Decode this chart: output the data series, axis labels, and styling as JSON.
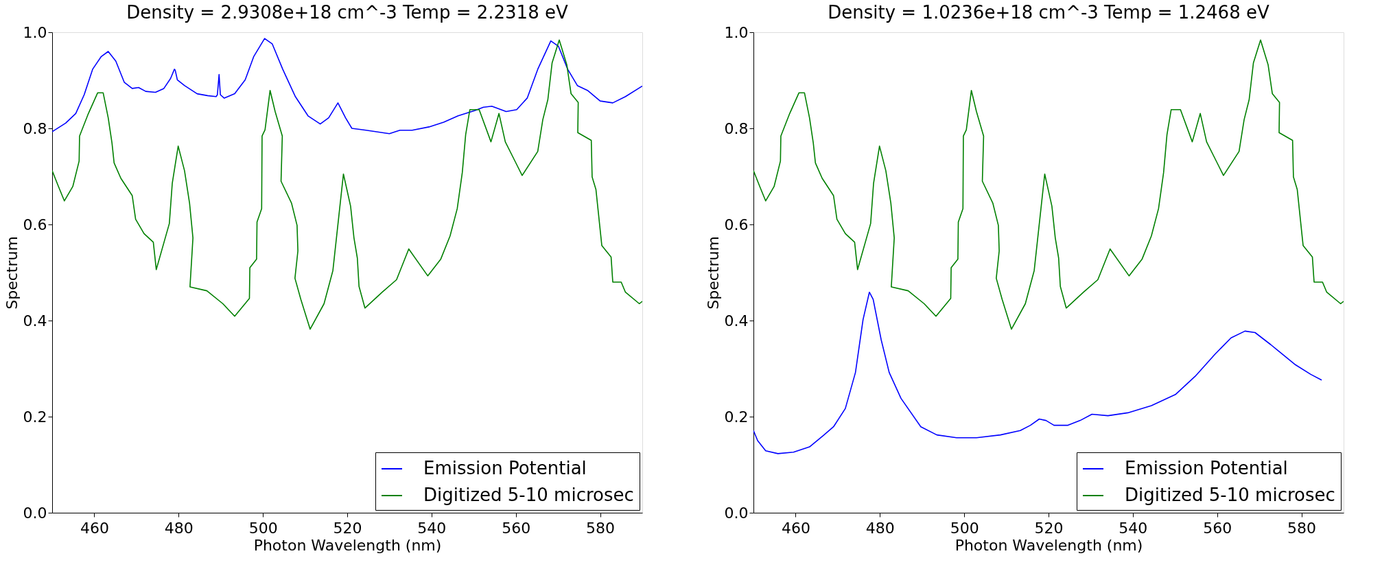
{
  "chart_data": [
    {
      "type": "line",
      "title": "Density = 2.9308e+18 cm^-3  Temp = 2.2318 eV",
      "xlabel": "Photon Wavelength (nm)",
      "ylabel": "Spectrum",
      "xlim": [
        450,
        590
      ],
      "xticks": [
        460,
        480,
        500,
        520,
        540,
        560,
        580
      ],
      "ylim": [
        0,
        1
      ],
      "yticks": [
        {
          "value": 0,
          "label": "0.0"
        },
        {
          "value": 0.2,
          "label": "0.2"
        },
        {
          "value": 0.4,
          "label": "0.4"
        },
        {
          "value": 0.6,
          "label": "0.6"
        },
        {
          "value": 0.8,
          "label": "0.8"
        },
        {
          "value": 1,
          "label": "1.0"
        }
      ],
      "legend": "bottom right",
      "line_style": "solid",
      "series": [
        {
          "name": "Emission Potential",
          "color": "#0000ff",
          "x": [
            450,
            453.2,
            455.6,
            457.6,
            459.6,
            461.6,
            463.3,
            465.1,
            467.1,
            469.0,
            470.5,
            472.2,
            474.5,
            476.5,
            478.1,
            479.0,
            479.2,
            479.7,
            481.4,
            484.4,
            486.9,
            488.9,
            489.2,
            489.6,
            489.9,
            490.8,
            493.3,
            495.8,
            497.8,
            500.4,
            502.2,
            504.7,
            507.7,
            510.7,
            513.6,
            515.6,
            517.8,
            519.6,
            521.1,
            524.5,
            530.0,
            532.5,
            535.4,
            539.4,
            542.9,
            546.3,
            550.3,
            552.3,
            554.3,
            557.7,
            560.2,
            562.7,
            565.2,
            568.3,
            570.1,
            572.3,
            574.6,
            577.0,
            580.0,
            583.0,
            586.0,
            590
          ],
          "values": [
            0.793,
            0.811,
            0.831,
            0.87,
            0.923,
            0.949,
            0.96,
            0.94,
            0.896,
            0.883,
            0.885,
            0.877,
            0.875,
            0.883,
            0.904,
            0.923,
            0.921,
            0.901,
            0.889,
            0.872,
            0.868,
            0.866,
            0.87,
            0.912,
            0.87,
            0.863,
            0.872,
            0.901,
            0.949,
            0.987,
            0.976,
            0.923,
            0.866,
            0.826,
            0.809,
            0.822,
            0.853,
            0.822,
            0.8,
            0.796,
            0.789,
            0.796,
            0.796,
            0.803,
            0.813,
            0.826,
            0.837,
            0.844,
            0.846,
            0.835,
            0.839,
            0.863,
            0.923,
            0.982,
            0.971,
            0.923,
            0.889,
            0.879,
            0.857,
            0.853,
            0.866,
            0.888
          ]
        },
        {
          "name": "Digitized 5-10 microsec",
          "color": "#008000",
          "x": [
            450,
            451.5,
            452.9,
            454.9,
            456.4,
            456.5,
            458.6,
            460.8,
            462.1,
            463.3,
            464.2,
            464.7,
            466.3,
            469.0,
            469.8,
            471.8,
            474.0,
            474.7,
            477.8,
            478.5,
            479.9,
            481.4,
            482.6,
            483.4,
            482.7,
            486.7,
            490.5,
            493.3,
            496.8,
            496.9,
            498.5,
            498.6,
            499.7,
            499.8,
            500.5,
            501.7,
            502.9,
            504.6,
            504.3,
            506.8,
            508.1,
            508.3,
            507.6,
            509.0,
            511.2,
            514.5,
            516.6,
            519.1,
            520.8,
            521.6,
            522.4,
            522.8,
            524.2,
            528.3,
            531.7,
            534.6,
            539.1,
            542.2,
            544.4,
            546.1,
            547.3,
            548.1,
            549.1,
            551.3,
            554.1,
            556.0,
            557.5,
            559.9,
            561.5,
            565.2,
            566.4,
            567.6,
            568.6,
            570.3,
            572.1,
            573.1,
            574.8,
            574.7,
            577.9,
            578.1,
            579.0,
            580.4,
            582.6,
            583.0,
            585.0,
            586.0,
            589.3,
            590
          ],
          "values": [
            0.712,
            0.679,
            0.649,
            0.679,
            0.732,
            0.784,
            0.831,
            0.874,
            0.874,
            0.822,
            0.769,
            0.728,
            0.696,
            0.66,
            0.611,
            0.581,
            0.563,
            0.506,
            0.602,
            0.686,
            0.763,
            0.712,
            0.644,
            0.572,
            0.47,
            0.462,
            0.435,
            0.409,
            0.446,
            0.51,
            0.528,
            0.605,
            0.633,
            0.784,
            0.797,
            0.879,
            0.835,
            0.784,
            0.69,
            0.644,
            0.598,
            0.545,
            0.488,
            0.444,
            0.382,
            0.435,
            0.504,
            0.705,
            0.638,
            0.572,
            0.53,
            0.471,
            0.426,
            0.459,
            0.485,
            0.549,
            0.493,
            0.528,
            0.576,
            0.633,
            0.708,
            0.787,
            0.839,
            0.839,
            0.772,
            0.831,
            0.772,
            0.73,
            0.702,
            0.752,
            0.818,
            0.86,
            0.936,
            0.984,
            0.932,
            0.872,
            0.854,
            0.791,
            0.775,
            0.699,
            0.673,
            0.556,
            0.532,
            0.48,
            0.48,
            0.459,
            0.435,
            0.44
          ]
        }
      ]
    },
    {
      "type": "line",
      "title": "Density = 1.0236e+18 cm^-3  Temp = 1.2468 eV",
      "xlabel": "Photon Wavelength (nm)",
      "ylabel": "Spectrum",
      "xlim": [
        450,
        590
      ],
      "xticks": [
        460,
        480,
        500,
        520,
        540,
        560,
        580
      ],
      "ylim": [
        0,
        1
      ],
      "yticks": [
        {
          "value": 0,
          "label": "0.0"
        },
        {
          "value": 0.2,
          "label": "0.2"
        },
        {
          "value": 0.4,
          "label": "0.4"
        },
        {
          "value": 0.6,
          "label": "0.6"
        },
        {
          "value": 0.8,
          "label": "0.8"
        },
        {
          "value": 1,
          "label": "1.0"
        }
      ],
      "legend": "bottom right",
      "line_style": "solid",
      "series": [
        {
          "name": "Emission Potential",
          "color": "#0000ff",
          "x": [
            450,
            451.0,
            452.9,
            455.8,
            459.5,
            463.3,
            466.6,
            469.0,
            471.8,
            474.2,
            476.0,
            477.5,
            478.4,
            480.3,
            482.2,
            485.0,
            489.7,
            493.5,
            498.2,
            502.9,
            508.6,
            513.3,
            515.7,
            517.8,
            519.4,
            521.3,
            524.6,
            527.5,
            530.3,
            534.1,
            538.8,
            544.4,
            550.1,
            554.8,
            559.5,
            563.3,
            566.6,
            569.0,
            572.7,
            578.4,
            582.2,
            584.8
          ],
          "values": [
            0.171,
            0.15,
            0.129,
            0.123,
            0.126,
            0.137,
            0.161,
            0.179,
            0.217,
            0.292,
            0.402,
            0.459,
            0.444,
            0.36,
            0.292,
            0.238,
            0.179,
            0.162,
            0.156,
            0.156,
            0.162,
            0.171,
            0.182,
            0.195,
            0.192,
            0.182,
            0.182,
            0.192,
            0.205,
            0.202,
            0.208,
            0.223,
            0.246,
            0.284,
            0.33,
            0.364,
            0.378,
            0.375,
            0.35,
            0.309,
            0.288,
            0.276
          ]
        },
        {
          "name": "Digitized 5-10 microsec",
          "color": "#008000",
          "x": [
            450,
            451.5,
            452.9,
            454.9,
            456.4,
            456.5,
            458.6,
            460.8,
            462.1,
            463.3,
            464.2,
            464.7,
            466.3,
            469.0,
            469.8,
            471.8,
            474.0,
            474.7,
            477.8,
            478.5,
            479.9,
            481.4,
            482.6,
            483.4,
            482.7,
            486.7,
            490.5,
            493.3,
            496.8,
            496.9,
            498.5,
            498.6,
            499.7,
            499.8,
            500.5,
            501.7,
            502.9,
            504.6,
            504.3,
            506.8,
            508.1,
            508.3,
            507.6,
            509.0,
            511.2,
            514.5,
            516.6,
            519.1,
            520.8,
            521.6,
            522.4,
            522.8,
            524.2,
            528.3,
            531.7,
            534.6,
            539.1,
            542.2,
            544.4,
            546.1,
            547.3,
            548.1,
            549.1,
            551.3,
            554.1,
            556.0,
            557.5,
            559.9,
            561.5,
            565.2,
            566.4,
            567.6,
            568.6,
            570.3,
            572.1,
            573.1,
            574.8,
            574.7,
            577.9,
            578.1,
            579.0,
            580.4,
            582.6,
            583.0,
            585.0,
            586.0,
            589.3,
            590
          ],
          "values": [
            0.712,
            0.679,
            0.649,
            0.679,
            0.732,
            0.784,
            0.831,
            0.874,
            0.874,
            0.822,
            0.769,
            0.728,
            0.696,
            0.66,
            0.611,
            0.581,
            0.563,
            0.506,
            0.602,
            0.686,
            0.763,
            0.712,
            0.644,
            0.572,
            0.47,
            0.462,
            0.435,
            0.409,
            0.446,
            0.51,
            0.528,
            0.605,
            0.633,
            0.784,
            0.797,
            0.879,
            0.835,
            0.784,
            0.69,
            0.644,
            0.598,
            0.545,
            0.488,
            0.444,
            0.382,
            0.435,
            0.504,
            0.705,
            0.638,
            0.572,
            0.53,
            0.471,
            0.426,
            0.459,
            0.485,
            0.549,
            0.493,
            0.528,
            0.576,
            0.633,
            0.708,
            0.787,
            0.839,
            0.839,
            0.772,
            0.831,
            0.772,
            0.73,
            0.702,
            0.752,
            0.818,
            0.86,
            0.936,
            0.984,
            0.932,
            0.872,
            0.854,
            0.791,
            0.775,
            0.699,
            0.673,
            0.556,
            0.532,
            0.48,
            0.48,
            0.459,
            0.435,
            0.44
          ]
        }
      ]
    }
  ]
}
